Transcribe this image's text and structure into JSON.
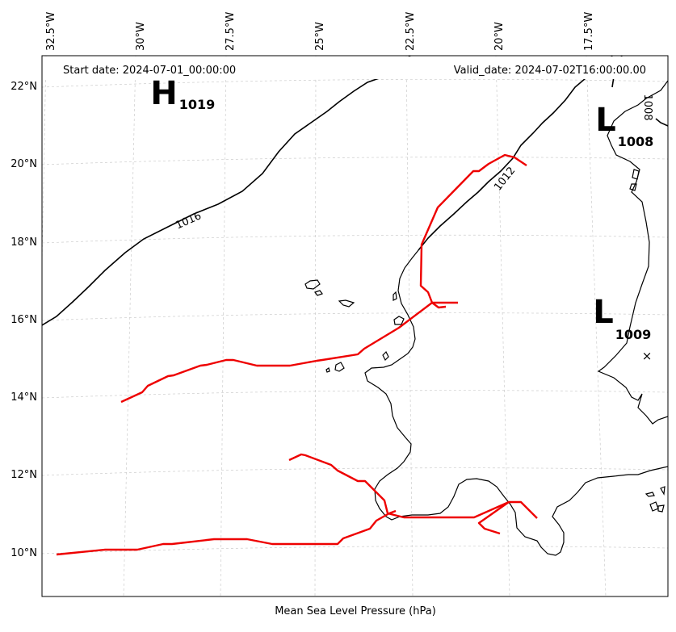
{
  "map": {
    "header": {
      "start_date": "Start date: 2024-07-01_00:00:00",
      "valid_date": "Valid_date: 2024-07-02T16:00:00.00"
    },
    "footer_label": "Mean Sea Level Pressure (hPa)",
    "longitude_ticks": [
      "32.5°W",
      "30°W",
      "27.5°W",
      "25°W",
      "22.5°W",
      "20°W",
      "17.5°W"
    ],
    "latitude_ticks": [
      "22°N",
      "20°N",
      "18°N",
      "16°N",
      "14°N",
      "12°N",
      "10°N"
    ],
    "pressure_systems": [
      {
        "letter": "H",
        "value": "1019"
      },
      {
        "letter": "L",
        "value": "1008"
      },
      {
        "letter": "L",
        "value": "1009"
      }
    ],
    "contour_labels": [
      "1016",
      "1012",
      "1008"
    ],
    "storm_marker": "×",
    "colors": {
      "tracks": "#ee0000",
      "isobars": "#000000",
      "coastline": "#000000",
      "grid": "#cccccc"
    }
  }
}
